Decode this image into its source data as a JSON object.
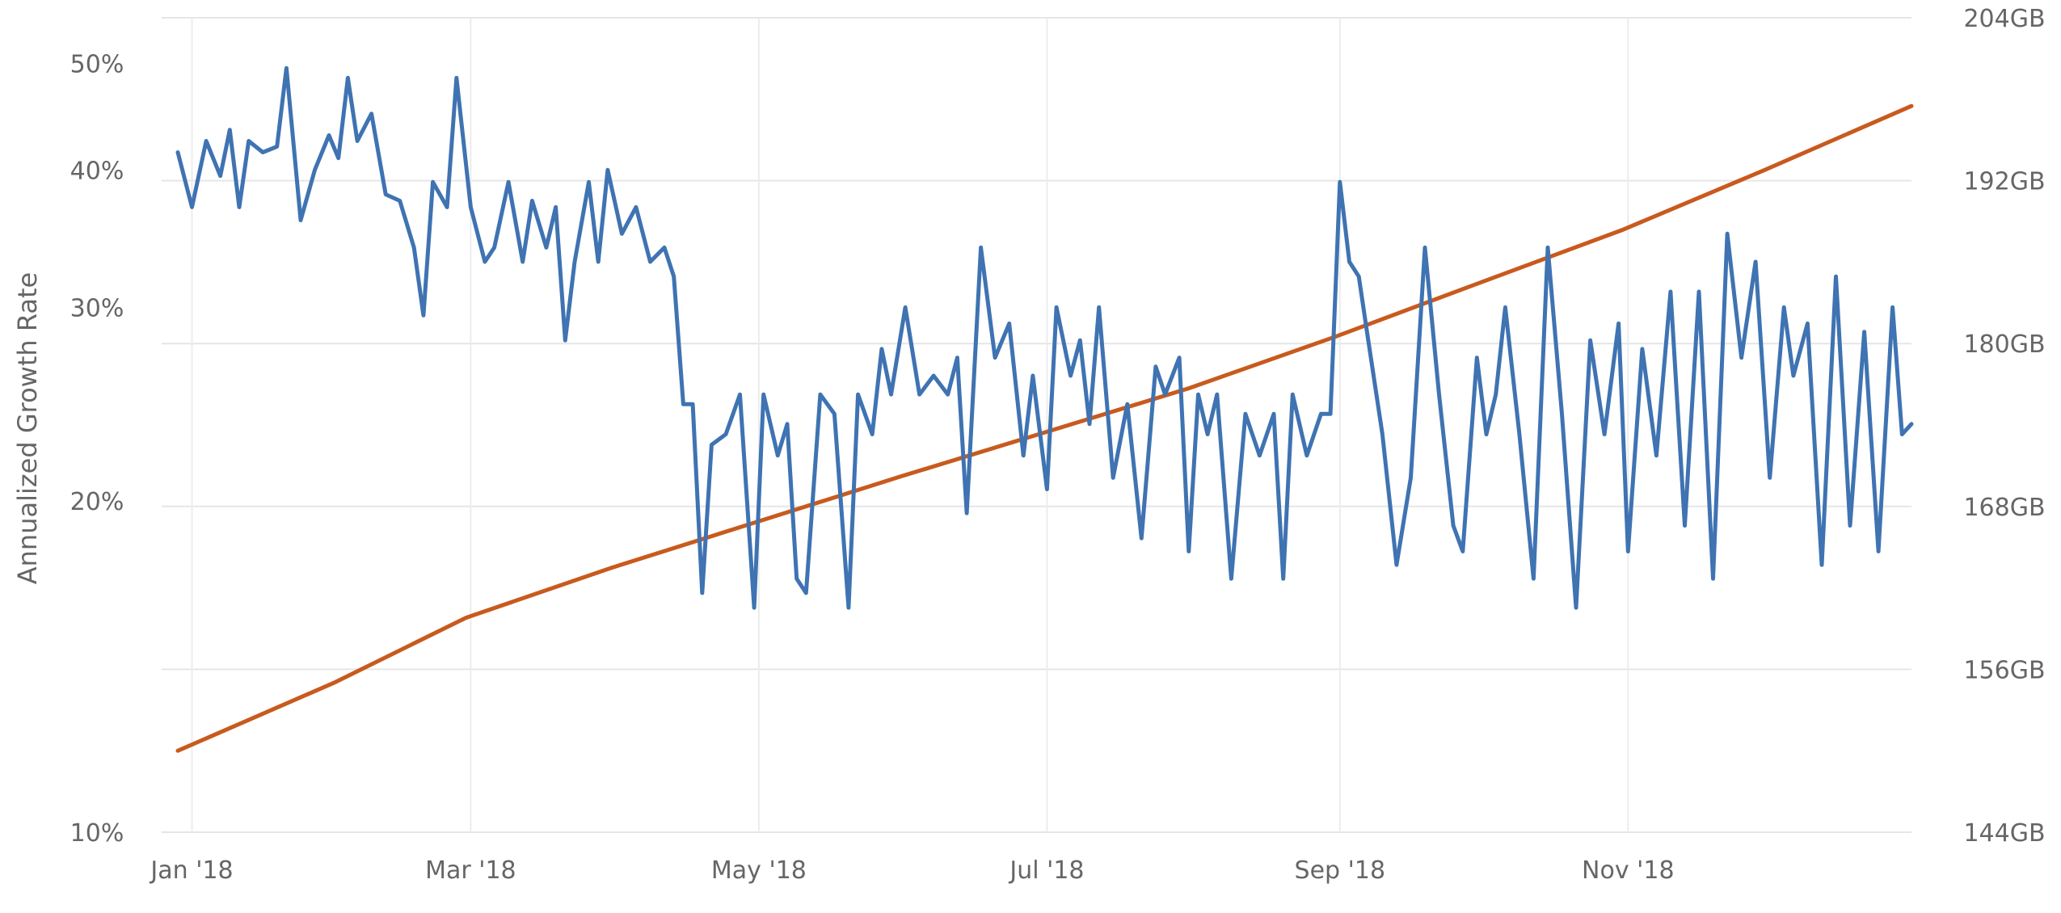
{
  "chart_data": {
    "type": "line",
    "title": "",
    "grid": true,
    "x_ticks": [
      {
        "date": "2018-01-01",
        "label": "Jan '18"
      },
      {
        "date": "2018-03-01",
        "label": "Mar '18"
      },
      {
        "date": "2018-05-01",
        "label": "May '18"
      },
      {
        "date": "2018-07-01",
        "label": "Jul '18"
      },
      {
        "date": "2018-09-01",
        "label": "Sep '18"
      },
      {
        "date": "2018-11-01",
        "label": "Nov '18"
      }
    ],
    "x_range": [
      "2017-12-29",
      "2018-12-31"
    ],
    "left_axis": {
      "label": "Annualized Growth Rate",
      "scale": "log",
      "range": [
        10,
        55
      ],
      "ticks": [
        {
          "value": 10,
          "label": "10%"
        },
        {
          "value": 20,
          "label": "20%"
        },
        {
          "value": 30,
          "label": "30%"
        },
        {
          "value": 40,
          "label": "40%"
        },
        {
          "value": 50,
          "label": "50%"
        }
      ]
    },
    "right_axis": {
      "label": "",
      "scale": "linear",
      "range": [
        144,
        204
      ],
      "ticks": [
        {
          "value": 144,
          "label": "144GB"
        },
        {
          "value": 156,
          "label": "156GB"
        },
        {
          "value": 168,
          "label": "168GB"
        },
        {
          "value": 180,
          "label": "180GB"
        },
        {
          "value": 192,
          "label": "192GB"
        },
        {
          "value": 204,
          "label": "204GB"
        }
      ]
    },
    "series": [
      {
        "axis": "left",
        "color": "#3f73b2",
        "points": [
          [
            "2017-12-29",
            41.5
          ],
          [
            "2018-01-01",
            37.0
          ],
          [
            "2018-01-04",
            42.5
          ],
          [
            "2018-01-07",
            39.5
          ],
          [
            "2018-01-09",
            43.5
          ],
          [
            "2018-01-11",
            37.0
          ],
          [
            "2018-01-13",
            42.5
          ],
          [
            "2018-01-16",
            41.5
          ],
          [
            "2018-01-19",
            42.0
          ],
          [
            "2018-01-21",
            49.5
          ],
          [
            "2018-01-24",
            36.0
          ],
          [
            "2018-01-27",
            40.0
          ],
          [
            "2018-01-30",
            43.0
          ],
          [
            "2018-02-01",
            41.0
          ],
          [
            "2018-02-03",
            48.5
          ],
          [
            "2018-02-05",
            42.5
          ],
          [
            "2018-02-08",
            45.0
          ],
          [
            "2018-02-11",
            38.0
          ],
          [
            "2018-02-14",
            37.5
          ],
          [
            "2018-02-17",
            34.0
          ],
          [
            "2018-02-19",
            29.5
          ],
          [
            "2018-02-21",
            39.0
          ],
          [
            "2018-02-24",
            37.0
          ],
          [
            "2018-02-26",
            48.5
          ],
          [
            "2018-03-01",
            37.0
          ],
          [
            "2018-03-04",
            33.0
          ],
          [
            "2018-03-06",
            34.0
          ],
          [
            "2018-03-09",
            39.0
          ],
          [
            "2018-03-12",
            33.0
          ],
          [
            "2018-03-14",
            37.5
          ],
          [
            "2018-03-17",
            34.0
          ],
          [
            "2018-03-19",
            37.0
          ],
          [
            "2018-03-21",
            28.0
          ],
          [
            "2018-03-23",
            33.0
          ],
          [
            "2018-03-26",
            39.0
          ],
          [
            "2018-03-28",
            33.0
          ],
          [
            "2018-03-30",
            40.0
          ],
          [
            "2018-04-02",
            35.0
          ],
          [
            "2018-04-05",
            37.0
          ],
          [
            "2018-04-08",
            33.0
          ],
          [
            "2018-04-11",
            34.0
          ],
          [
            "2018-04-13",
            32.0
          ],
          [
            "2018-04-15",
            24.5
          ],
          [
            "2018-04-17",
            24.5
          ],
          [
            "2018-04-19",
            16.5
          ],
          [
            "2018-04-21",
            22.5
          ],
          [
            "2018-04-24",
            23.0
          ],
          [
            "2018-04-27",
            25.0
          ],
          [
            "2018-04-30",
            16.0
          ],
          [
            "2018-05-02",
            25.0
          ],
          [
            "2018-05-05",
            22.0
          ],
          [
            "2018-05-07",
            23.5
          ],
          [
            "2018-05-09",
            17.0
          ],
          [
            "2018-05-11",
            16.5
          ],
          [
            "2018-05-14",
            25.0
          ],
          [
            "2018-05-17",
            24.0
          ],
          [
            "2018-05-20",
            16.0
          ],
          [
            "2018-05-22",
            25.0
          ],
          [
            "2018-05-25",
            23.0
          ],
          [
            "2018-05-27",
            27.5
          ],
          [
            "2018-05-29",
            25.0
          ],
          [
            "2018-06-01",
            30.0
          ],
          [
            "2018-06-04",
            25.0
          ],
          [
            "2018-06-07",
            26.0
          ],
          [
            "2018-06-10",
            25.0
          ],
          [
            "2018-06-12",
            27.0
          ],
          [
            "2018-06-14",
            19.5
          ],
          [
            "2018-06-17",
            34.0
          ],
          [
            "2018-06-20",
            27.0
          ],
          [
            "2018-06-23",
            29.0
          ],
          [
            "2018-06-26",
            22.0
          ],
          [
            "2018-06-28",
            26.0
          ],
          [
            "2018-07-01",
            20.5
          ],
          [
            "2018-07-03",
            30.0
          ],
          [
            "2018-07-06",
            26.0
          ],
          [
            "2018-07-08",
            28.0
          ],
          [
            "2018-07-10",
            23.5
          ],
          [
            "2018-07-12",
            30.0
          ],
          [
            "2018-07-15",
            21.0
          ],
          [
            "2018-07-18",
            24.5
          ],
          [
            "2018-07-21",
            18.5
          ],
          [
            "2018-07-24",
            26.5
          ],
          [
            "2018-07-26",
            25.0
          ],
          [
            "2018-07-29",
            27.0
          ],
          [
            "2018-07-31",
            18.0
          ],
          [
            "2018-08-02",
            25.0
          ],
          [
            "2018-08-04",
            23.0
          ],
          [
            "2018-08-06",
            25.0
          ],
          [
            "2018-08-09",
            17.0
          ],
          [
            "2018-08-12",
            24.0
          ],
          [
            "2018-08-15",
            22.0
          ],
          [
            "2018-08-18",
            24.0
          ],
          [
            "2018-08-20",
            17.0
          ],
          [
            "2018-08-22",
            25.0
          ],
          [
            "2018-08-25",
            22.0
          ],
          [
            "2018-08-28",
            24.0
          ],
          [
            "2018-08-30",
            24.0
          ],
          [
            "2018-09-01",
            39.0
          ],
          [
            "2018-09-03",
            33.0
          ],
          [
            "2018-09-05",
            32.0
          ],
          [
            "2018-09-07",
            28.0
          ],
          [
            "2018-09-10",
            23.0
          ],
          [
            "2018-09-13",
            17.5
          ],
          [
            "2018-09-16",
            21.0
          ],
          [
            "2018-09-19",
            34.0
          ],
          [
            "2018-09-22",
            25.0
          ],
          [
            "2018-09-25",
            19.0
          ],
          [
            "2018-09-27",
            18.0
          ],
          [
            "2018-09-30",
            27.0
          ],
          [
            "2018-10-02",
            23.0
          ],
          [
            "2018-10-04",
            25.0
          ],
          [
            "2018-10-06",
            30.0
          ],
          [
            "2018-10-09",
            23.0
          ],
          [
            "2018-10-12",
            17.0
          ],
          [
            "2018-10-15",
            34.0
          ],
          [
            "2018-10-18",
            24.0
          ],
          [
            "2018-10-21",
            16.0
          ],
          [
            "2018-10-24",
            28.0
          ],
          [
            "2018-10-27",
            23.0
          ],
          [
            "2018-10-30",
            29.0
          ],
          [
            "2018-11-01",
            18.0
          ],
          [
            "2018-11-04",
            27.5
          ],
          [
            "2018-11-07",
            22.0
          ],
          [
            "2018-11-10",
            31.0
          ],
          [
            "2018-11-13",
            19.0
          ],
          [
            "2018-11-16",
            31.0
          ],
          [
            "2018-11-19",
            17.0
          ],
          [
            "2018-11-22",
            35.0
          ],
          [
            "2018-11-25",
            27.0
          ],
          [
            "2018-11-28",
            33.0
          ],
          [
            "2018-12-01",
            21.0
          ],
          [
            "2018-12-04",
            30.0
          ],
          [
            "2018-12-06",
            26.0
          ],
          [
            "2018-12-09",
            29.0
          ],
          [
            "2018-12-12",
            17.5
          ],
          [
            "2018-12-15",
            32.0
          ],
          [
            "2018-12-18",
            19.0
          ],
          [
            "2018-12-21",
            28.5
          ],
          [
            "2018-12-24",
            18.0
          ],
          [
            "2018-12-27",
            30.0
          ],
          [
            "2018-12-29",
            23.0
          ],
          [
            "2018-12-31",
            23.5
          ]
        ]
      },
      {
        "axis": "right",
        "color": "#c85a1e",
        "points": [
          [
            "2017-12-29",
            150.0
          ],
          [
            "2018-01-31",
            155.0
          ],
          [
            "2018-02-28",
            159.8
          ],
          [
            "2018-03-31",
            163.5
          ],
          [
            "2018-04-30",
            166.8
          ],
          [
            "2018-05-31",
            170.2
          ],
          [
            "2018-06-30",
            173.4
          ],
          [
            "2018-07-31",
            176.7
          ],
          [
            "2018-08-31",
            180.5
          ],
          [
            "2018-09-30",
            184.4
          ],
          [
            "2018-10-31",
            188.4
          ],
          [
            "2018-11-30",
            192.8
          ],
          [
            "2018-12-31",
            197.5
          ]
        ]
      }
    ]
  }
}
